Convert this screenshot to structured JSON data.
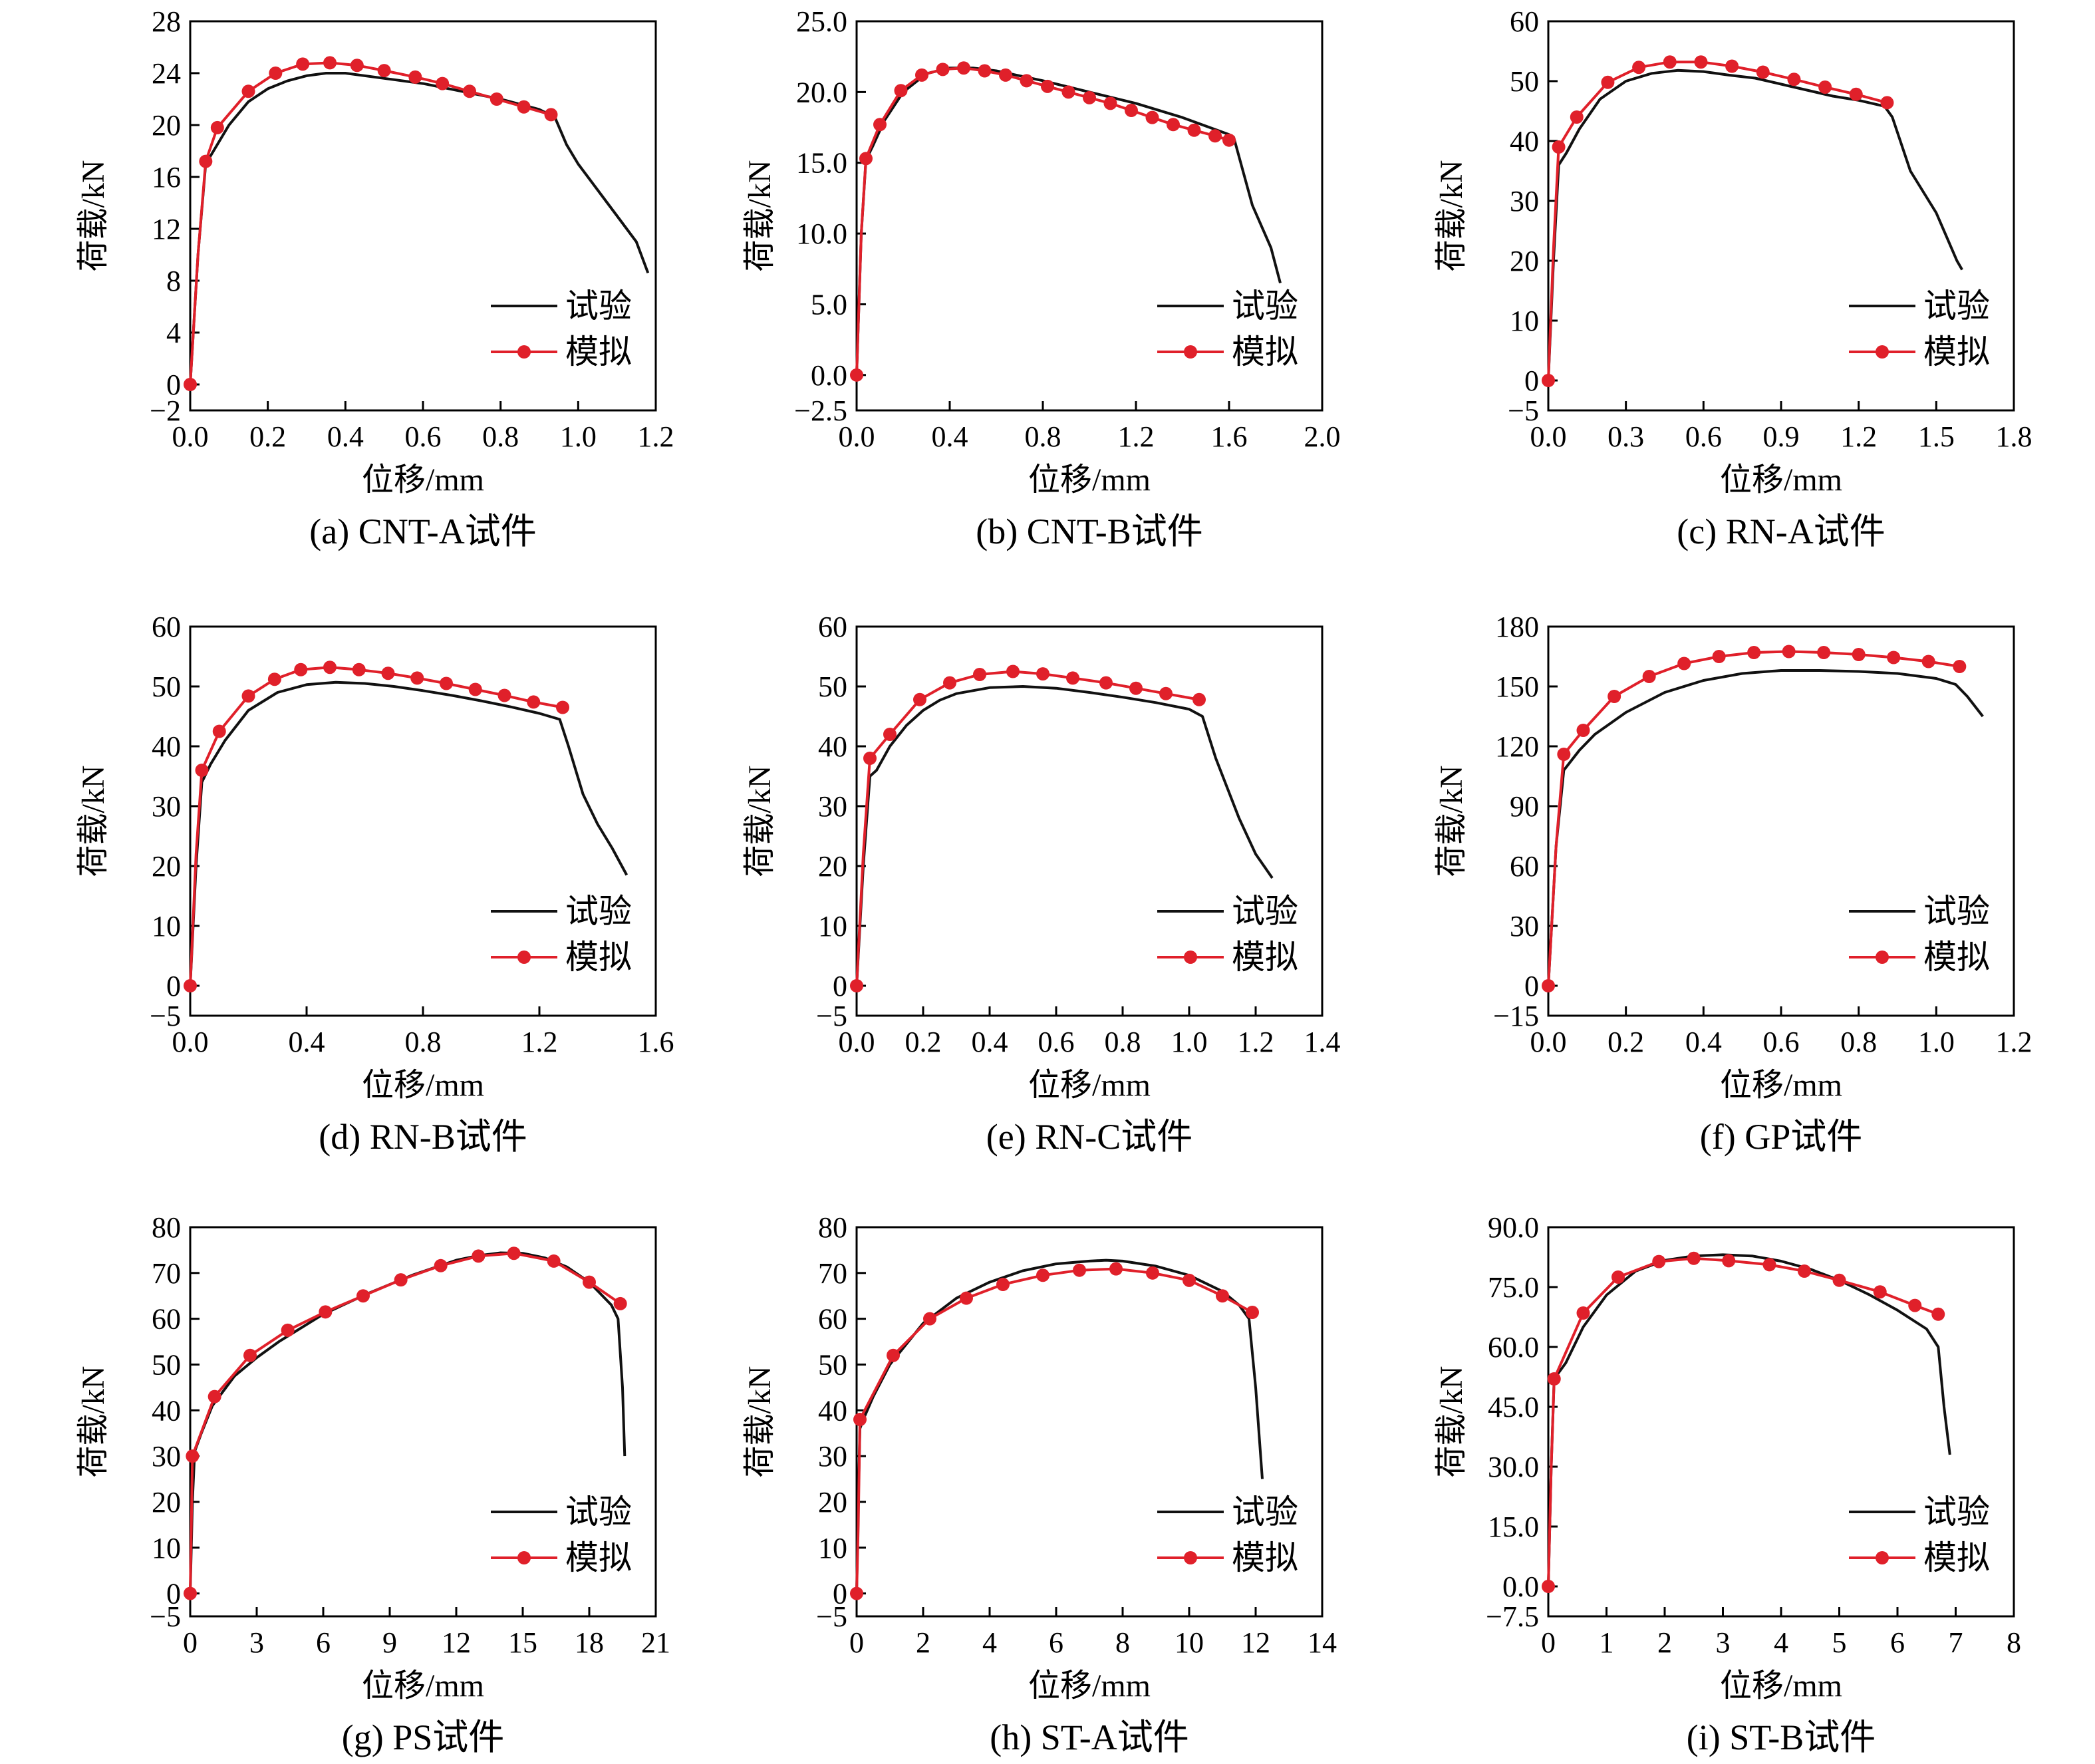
{
  "figure": {
    "xlabel": "位移/mm",
    "ylabel": "荷载/kN"
  },
  "legend": {
    "test": "试验",
    "sim": "模拟"
  },
  "colors": {
    "test": "#111111",
    "sim": "#e0202a"
  },
  "chart_data": [
    {
      "id": "a",
      "type": "line",
      "caption": "(a) CNT-A试件",
      "xlim": [
        0,
        1.2
      ],
      "ylim": [
        -2,
        28
      ],
      "xticks": [
        "0.0",
        "0.2",
        "0.4",
        "0.6",
        "0.8",
        "1.0",
        "1.2"
      ],
      "yticks": [
        "−2",
        "0",
        "4",
        "8",
        "12",
        "16",
        "20",
        "24",
        "28"
      ],
      "ytick_values": [
        -2,
        0,
        4,
        8,
        12,
        16,
        20,
        24,
        28
      ],
      "series": [
        {
          "name": "试验",
          "x": [
            0,
            0.02,
            0.04,
            0.06,
            0.1,
            0.15,
            0.2,
            0.25,
            0.3,
            0.35,
            0.4,
            0.5,
            0.6,
            0.7,
            0.8,
            0.9,
            0.94,
            0.97,
            1.0,
            1.05,
            1.1,
            1.15,
            1.18
          ],
          "y": [
            0,
            10,
            17,
            18,
            20,
            21.8,
            22.8,
            23.4,
            23.8,
            24,
            24,
            23.6,
            23.2,
            22.6,
            22,
            21.2,
            20.6,
            18.5,
            17,
            15,
            13,
            11,
            8.6
          ]
        },
        {
          "name": "模拟",
          "x": [
            0,
            0.02,
            0.04,
            0.07,
            0.15,
            0.22,
            0.29,
            0.36,
            0.43,
            0.5,
            0.58,
            0.65,
            0.72,
            0.79,
            0.86,
            0.93
          ],
          "y": [
            0,
            10,
            17.2,
            19.8,
            22.6,
            24,
            24.7,
            24.8,
            24.6,
            24.2,
            23.7,
            23.2,
            22.6,
            22,
            21.4,
            20.8
          ]
        }
      ]
    },
    {
      "id": "b",
      "type": "line",
      "caption": "(b) CNT-B试件",
      "xlim": [
        0,
        2.0
      ],
      "ylim": [
        -2.5,
        25
      ],
      "xticks": [
        "0.0",
        "0.4",
        "0.8",
        "1.2",
        "1.6",
        "2.0"
      ],
      "yticks": [
        "−2.5",
        "0.0",
        "5.0",
        "10.0",
        "15.0",
        "20.0",
        "25.0"
      ],
      "ytick_values": [
        -2.5,
        0,
        5,
        10,
        15,
        20,
        25
      ],
      "series": [
        {
          "name": "试验",
          "x": [
            0,
            0.02,
            0.04,
            0.07,
            0.12,
            0.2,
            0.3,
            0.4,
            0.5,
            0.6,
            0.8,
            1.0,
            1.2,
            1.4,
            1.6,
            1.62,
            1.7,
            1.78,
            1.82
          ],
          "y": [
            0,
            10,
            15.2,
            16.2,
            18,
            20,
            21.3,
            21.7,
            21.7,
            21.5,
            20.8,
            20,
            19.2,
            18.2,
            17,
            16.8,
            12,
            9,
            6.5
          ]
        },
        {
          "name": "模拟",
          "x": [
            0,
            0.02,
            0.04,
            0.1,
            0.19,
            0.28,
            0.37,
            0.46,
            0.55,
            0.64,
            0.73,
            0.82,
            0.91,
            1.0,
            1.09,
            1.18,
            1.27,
            1.36,
            1.45,
            1.54,
            1.6
          ],
          "y": [
            0,
            10,
            15.3,
            17.7,
            20.1,
            21.2,
            21.6,
            21.7,
            21.5,
            21.2,
            20.8,
            20.4,
            20,
            19.6,
            19.2,
            18.7,
            18.2,
            17.7,
            17.3,
            16.9,
            16.6
          ]
        }
      ]
    },
    {
      "id": "c",
      "type": "line",
      "caption": "(c) RN-A试件",
      "xlim": [
        0,
        1.8
      ],
      "ylim": [
        -5,
        60
      ],
      "xticks": [
        "0.0",
        "0.3",
        "0.6",
        "0.9",
        "1.2",
        "1.5",
        "1.8"
      ],
      "yticks": [
        "−5",
        "0",
        "10",
        "20",
        "30",
        "40",
        "50",
        "60"
      ],
      "ytick_values": [
        -5,
        0,
        10,
        20,
        30,
        40,
        50,
        60
      ],
      "series": [
        {
          "name": "试验",
          "x": [
            0,
            0.02,
            0.04,
            0.07,
            0.12,
            0.2,
            0.3,
            0.4,
            0.5,
            0.6,
            0.7,
            0.8,
            0.9,
            1.0,
            1.1,
            1.2,
            1.3,
            1.33,
            1.4,
            1.5,
            1.58,
            1.6
          ],
          "y": [
            0,
            20,
            36,
            38,
            42,
            47,
            50,
            51.3,
            51.8,
            51.6,
            51,
            50.5,
            49.5,
            48.5,
            47.5,
            46.8,
            45.8,
            44,
            35,
            28,
            20,
            18.5
          ]
        },
        {
          "name": "模拟",
          "x": [
            0,
            0.02,
            0.04,
            0.11,
            0.23,
            0.35,
            0.47,
            0.59,
            0.71,
            0.83,
            0.95,
            1.07,
            1.19,
            1.31
          ],
          "y": [
            0,
            22,
            39,
            44,
            49.8,
            52.3,
            53.2,
            53.2,
            52.5,
            51.5,
            50.3,
            49,
            47.8,
            46.4
          ]
        }
      ]
    },
    {
      "id": "d",
      "type": "line",
      "caption": "(d) RN-B试件",
      "xlim": [
        0,
        1.6
      ],
      "ylim": [
        -5,
        60
      ],
      "xticks": [
        "0.0",
        "0.4",
        "0.8",
        "1.2",
        "1.6"
      ],
      "yticks": [
        "−5",
        "0",
        "10",
        "20",
        "30",
        "40",
        "50",
        "60"
      ],
      "ytick_values": [
        -5,
        0,
        10,
        20,
        30,
        40,
        50,
        60
      ],
      "series": [
        {
          "name": "试验",
          "x": [
            0,
            0.02,
            0.04,
            0.07,
            0.12,
            0.2,
            0.3,
            0.4,
            0.5,
            0.6,
            0.7,
            0.8,
            0.9,
            1.0,
            1.1,
            1.2,
            1.27,
            1.3,
            1.35,
            1.4,
            1.45,
            1.5
          ],
          "y": [
            0,
            20,
            34,
            37,
            41,
            46,
            49,
            50.3,
            50.7,
            50.5,
            50,
            49.3,
            48.5,
            47.6,
            46.6,
            45.5,
            44.5,
            40,
            32,
            27,
            23,
            18.5
          ]
        },
        {
          "name": "模拟",
          "x": [
            0,
            0.02,
            0.04,
            0.1,
            0.2,
            0.29,
            0.38,
            0.48,
            0.58,
            0.68,
            0.78,
            0.88,
            0.98,
            1.08,
            1.18,
            1.28
          ],
          "y": [
            0,
            22,
            36,
            42.5,
            48.4,
            51.2,
            52.8,
            53.2,
            52.8,
            52.2,
            51.4,
            50.5,
            49.5,
            48.5,
            47.4,
            46.5
          ]
        }
      ]
    },
    {
      "id": "e",
      "type": "line",
      "caption": "(e) RN-C试件",
      "xlim": [
        0,
        1.4
      ],
      "ylim": [
        -5,
        60
      ],
      "xticks": [
        "0.0",
        "0.2",
        "0.4",
        "0.6",
        "0.8",
        "1.0",
        "1.2",
        "1.4"
      ],
      "yticks": [
        "−5",
        "0",
        "10",
        "20",
        "30",
        "40",
        "50",
        "60"
      ],
      "ytick_values": [
        -5,
        0,
        10,
        20,
        30,
        40,
        50,
        60
      ],
      "series": [
        {
          "name": "试验",
          "x": [
            0,
            0.02,
            0.04,
            0.06,
            0.1,
            0.15,
            0.2,
            0.25,
            0.3,
            0.4,
            0.5,
            0.6,
            0.7,
            0.8,
            0.9,
            1.0,
            1.04,
            1.08,
            1.15,
            1.2,
            1.25
          ],
          "y": [
            0,
            20,
            35,
            36,
            40,
            43.5,
            46,
            47.7,
            48.8,
            49.8,
            50,
            49.7,
            49,
            48.2,
            47.3,
            46.2,
            45,
            38,
            28,
            22,
            18
          ]
        },
        {
          "name": "模拟",
          "x": [
            0,
            0.02,
            0.04,
            0.1,
            0.19,
            0.28,
            0.37,
            0.47,
            0.56,
            0.65,
            0.75,
            0.84,
            0.93,
            1.03
          ],
          "y": [
            0,
            22,
            38,
            42,
            47.8,
            50.6,
            52,
            52.5,
            52.1,
            51.4,
            50.6,
            49.7,
            48.8,
            47.8
          ]
        }
      ]
    },
    {
      "id": "f",
      "type": "line",
      "caption": "(f) GP试件",
      "xlim": [
        0,
        1.2
      ],
      "ylim": [
        -15,
        180
      ],
      "xticks": [
        "0.0",
        "0.2",
        "0.4",
        "0.6",
        "0.8",
        "1.0",
        "1.2"
      ],
      "yticks": [
        "−15",
        "0",
        "30",
        "60",
        "90",
        "120",
        "150",
        "180"
      ],
      "ytick_values": [
        -15,
        0,
        30,
        60,
        90,
        120,
        150,
        180
      ],
      "series": [
        {
          "name": "试验",
          "x": [
            0,
            0.02,
            0.04,
            0.08,
            0.12,
            0.2,
            0.3,
            0.4,
            0.5,
            0.6,
            0.7,
            0.8,
            0.9,
            1.0,
            1.05,
            1.08,
            1.12
          ],
          "y": [
            0,
            70,
            108,
            118,
            126,
            137,
            147,
            153,
            156.5,
            158,
            158,
            157.5,
            156.5,
            154,
            151,
            145,
            135
          ]
        },
        {
          "name": "模拟",
          "x": [
            0,
            0.02,
            0.04,
            0.09,
            0.17,
            0.26,
            0.35,
            0.44,
            0.53,
            0.62,
            0.71,
            0.8,
            0.89,
            0.98,
            1.06
          ],
          "y": [
            0,
            70,
            116,
            128,
            145,
            155,
            161.5,
            165,
            167,
            167.5,
            167,
            166,
            164.5,
            162.5,
            160
          ]
        }
      ]
    },
    {
      "id": "g",
      "type": "line",
      "caption": "(g) PS试件",
      "xlim": [
        0,
        21
      ],
      "ylim": [
        -5,
        80
      ],
      "xticks": [
        "0",
        "3",
        "6",
        "9",
        "12",
        "15",
        "18",
        "21"
      ],
      "yticks": [
        "−5",
        "0",
        "10",
        "20",
        "30",
        "40",
        "50",
        "60",
        "70",
        "80"
      ],
      "ytick_values": [
        -5,
        0,
        10,
        20,
        30,
        40,
        50,
        60,
        70,
        80
      ],
      "series": [
        {
          "name": "试验",
          "x": [
            0,
            0.1,
            0.2,
            0.5,
            1,
            2,
            3,
            4,
            5,
            6,
            8,
            10,
            12,
            13,
            14,
            15,
            16,
            17,
            18,
            19,
            19.3,
            19.5,
            19.6
          ],
          "y": [
            0,
            20,
            31,
            35,
            41,
            47.5,
            51.5,
            55,
            58,
            61,
            65.5,
            69.5,
            72.8,
            73.8,
            74.4,
            74.3,
            73.3,
            71.3,
            68,
            63,
            60,
            45,
            30
          ]
        },
        {
          "name": "模拟",
          "x": [
            0,
            0.05,
            0.1,
            1.1,
            2.7,
            4.4,
            6.1,
            7.8,
            9.5,
            11.3,
            13,
            14.6,
            16.4,
            18,
            19.4
          ],
          "y": [
            0,
            15,
            30,
            43,
            52,
            57.5,
            61.5,
            65,
            68.5,
            71.6,
            73.7,
            74.3,
            72.6,
            68,
            63.3
          ]
        }
      ]
    },
    {
      "id": "h",
      "type": "line",
      "caption": "(h) ST-A试件",
      "xlim": [
        0,
        14
      ],
      "ylim": [
        -5,
        80
      ],
      "xticks": [
        "0",
        "2",
        "4",
        "6",
        "8",
        "10",
        "12",
        "14"
      ],
      "yticks": [
        "−5",
        "0",
        "10",
        "20",
        "30",
        "40",
        "50",
        "60",
        "70",
        "80"
      ],
      "ytick_values": [
        -5,
        0,
        10,
        20,
        30,
        40,
        50,
        60,
        70,
        80
      ],
      "series": [
        {
          "name": "试验",
          "x": [
            0,
            0.05,
            0.1,
            0.2,
            0.5,
            1,
            2,
            3,
            4,
            5,
            6,
            7,
            7.5,
            8,
            9,
            10,
            11,
            11.5,
            11.8,
            12,
            12.2
          ],
          "y": [
            0,
            20,
            36,
            38,
            43,
            50,
            59,
            64.5,
            68,
            70.5,
            72,
            72.6,
            72.8,
            72.6,
            71.5,
            69.5,
            66,
            63,
            60,
            45,
            25
          ]
        },
        {
          "name": "模拟",
          "x": [
            0,
            0.05,
            0.1,
            1.1,
            2.2,
            3.3,
            4.4,
            5.6,
            6.7,
            7.8,
            8.9,
            10,
            11,
            11.9
          ],
          "y": [
            0,
            15,
            38,
            52,
            60,
            64.5,
            67.5,
            69.5,
            70.6,
            70.9,
            70,
            68.4,
            65,
            61.4
          ]
        }
      ]
    },
    {
      "id": "i",
      "type": "line",
      "caption": "(i) ST-B试件",
      "xlim": [
        0,
        8
      ],
      "ylim": [
        -7.5,
        90
      ],
      "xticks": [
        "0",
        "1",
        "2",
        "3",
        "4",
        "5",
        "6",
        "7",
        "8"
      ],
      "yticks": [
        "−7.5",
        "0.0",
        "15.0",
        "30.0",
        "45.0",
        "60.0",
        "75.0",
        "90.0"
      ],
      "ytick_values": [
        -7.5,
        0,
        15,
        30,
        45,
        60,
        75,
        90
      ],
      "series": [
        {
          "name": "试验",
          "x": [
            0,
            0.05,
            0.1,
            0.3,
            0.6,
            1,
            1.5,
            2,
            2.5,
            3,
            3.5,
            4,
            4.5,
            5,
            5.5,
            6,
            6.5,
            6.7,
            6.8,
            6.9
          ],
          "y": [
            0,
            30,
            52,
            56,
            65,
            73,
            79,
            81.7,
            82.8,
            83.1,
            82.8,
            81.5,
            79.5,
            76.7,
            73.2,
            69.2,
            64.5,
            60,
            45,
            33
          ]
        },
        {
          "name": "模拟",
          "x": [
            0,
            0.05,
            0.1,
            0.6,
            1.2,
            1.9,
            2.5,
            3.1,
            3.8,
            4.4,
            5,
            5.7,
            6.3,
            6.7
          ],
          "y": [
            0,
            30,
            52,
            68.5,
            77.5,
            81.4,
            82.2,
            81.6,
            80.6,
            79,
            76.7,
            73.8,
            70.4,
            68.2
          ]
        }
      ]
    }
  ]
}
